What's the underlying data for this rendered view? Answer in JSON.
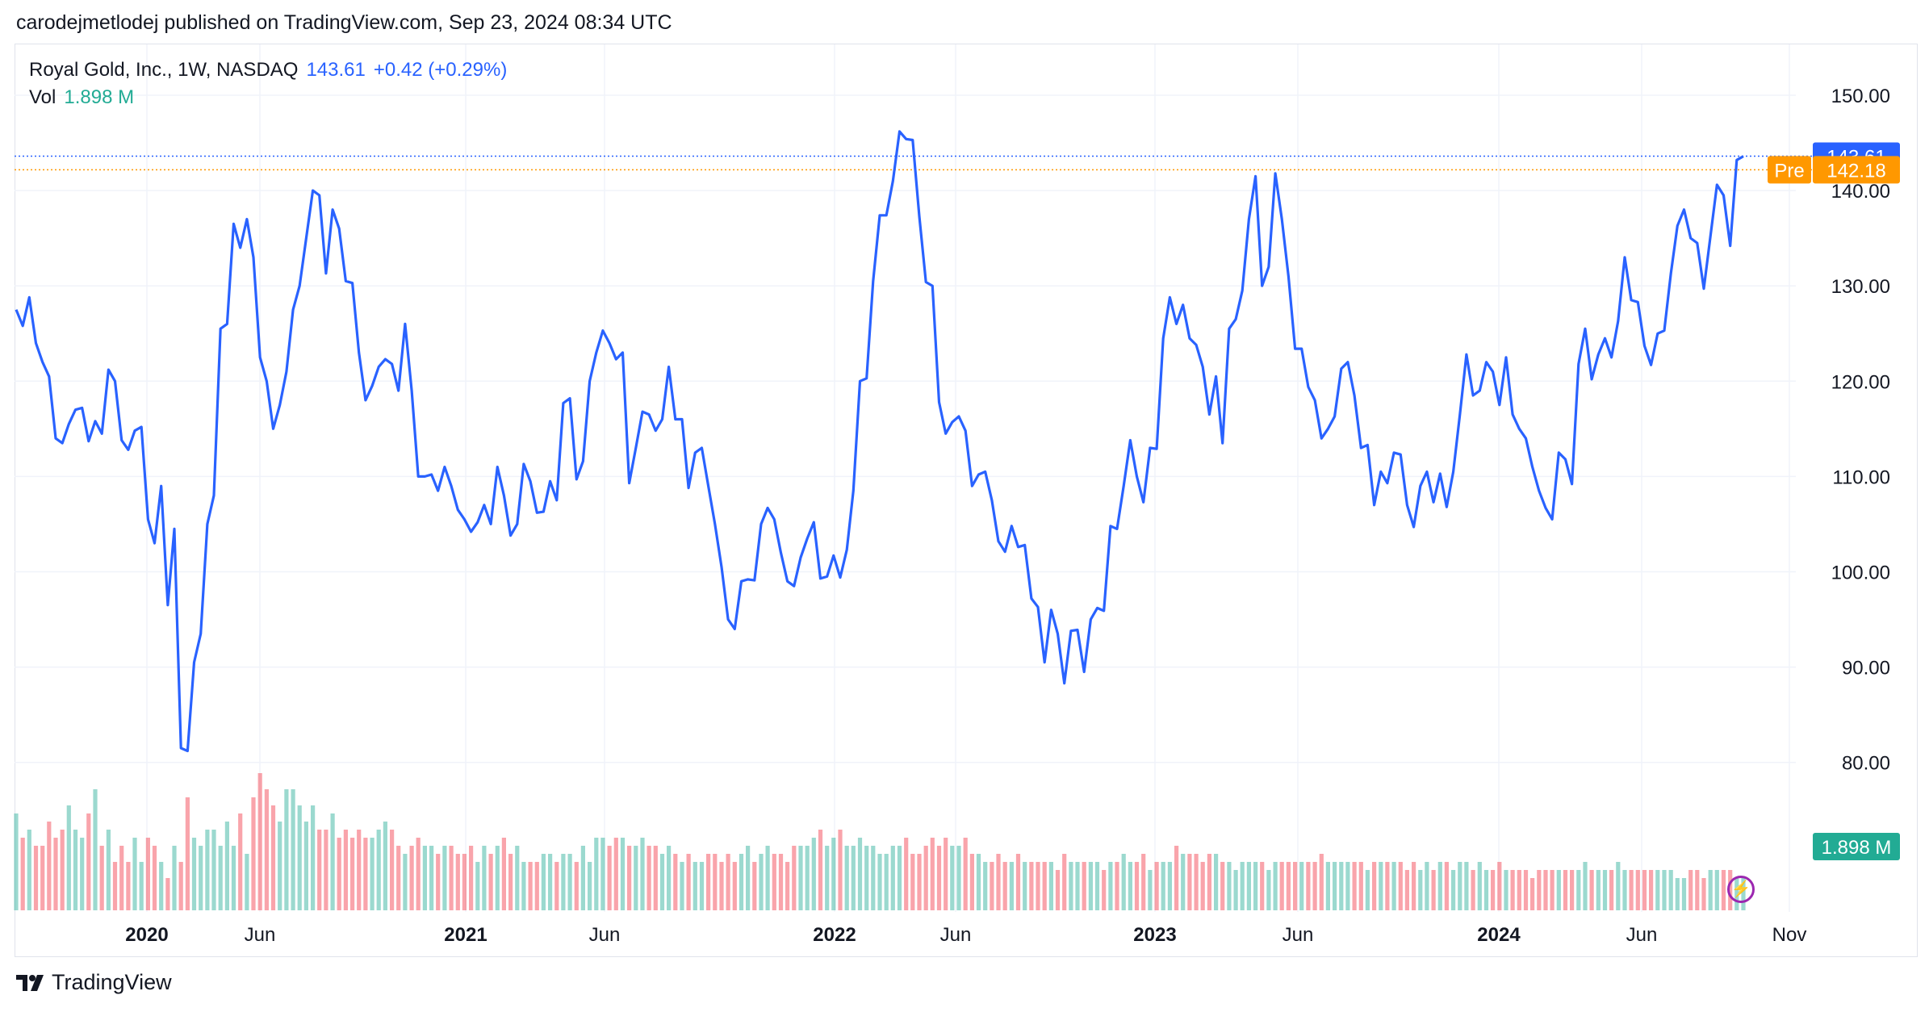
{
  "header": {
    "published_line": "carodejmetlodej published on TradingView.com, Sep 23, 2024 08:34 UTC"
  },
  "legend": {
    "symbol": "Royal Gold, Inc., 1W, NASDAQ",
    "price": "143.61",
    "change": "+0.42 (+0.29%)",
    "vol_label": "Vol",
    "vol_value": "1.898 M"
  },
  "footer": {
    "brand": "TradingView"
  },
  "icons": {
    "logo": "tradingview-logo-icon",
    "bolt": "lightning-icon"
  },
  "colors": {
    "price_line": "#2962ff",
    "pre_market": "#ff9800",
    "volume_up": "#22ab94",
    "volume_down": "#f23645",
    "volume_badge": "#22ab94"
  },
  "chart_data": {
    "type": "line",
    "title": "Royal Gold, Inc., 1W, NASDAQ",
    "x_tick_labels": [
      "2020",
      "Jun",
      "2021",
      "Jun",
      "2022",
      "Jun",
      "2023",
      "Jun",
      "2024",
      "Jun",
      "Nov"
    ],
    "y_tick_labels": [
      "150.00",
      "140.00",
      "130.00",
      "120.00",
      "110.00",
      "100.00",
      "90.00",
      "80.00"
    ],
    "ylim": [
      74,
      154
    ],
    "grid": true,
    "badges": {
      "last_price": "143.61",
      "pre_label": "Pre",
      "pre_price": "142.18",
      "volume": "1.898 M"
    },
    "series": [
      {
        "weekly_close": [
          127.5,
          125.8,
          128.8,
          124,
          122,
          120.5,
          114,
          113.5,
          115.5,
          117,
          117.2,
          113.7,
          115.8,
          114.5,
          121.2,
          120,
          113.8,
          112.8,
          114.8,
          115.2,
          105.5,
          103,
          109,
          96.5,
          104.5,
          81.5,
          81.2,
          90.5,
          93.5,
          105,
          108,
          125.5,
          126,
          136.5,
          134,
          137,
          133,
          122.5,
          120,
          115,
          117.5,
          121,
          127.5,
          130,
          135,
          140,
          139.5,
          131.3,
          138,
          136,
          130.5,
          130.3,
          123,
          118,
          119.5,
          121.5,
          122.3,
          121.8,
          119,
          126,
          119,
          110,
          110,
          110.2,
          108.5,
          111,
          109,
          106.5,
          105.5,
          104.2,
          105.2,
          107,
          105,
          111,
          108,
          103.8,
          105,
          111.3,
          109.5,
          106.2,
          106.3,
          109.5,
          107.5,
          117.7,
          118.2,
          109.7,
          111.6,
          120,
          123,
          125.3,
          124,
          122.3,
          123,
          109.3,
          113,
          116.8,
          116.5,
          114.8,
          116,
          121.5,
          116,
          116,
          108.8,
          112.5,
          113,
          109,
          105,
          100.5,
          95,
          94,
          99,
          99.2,
          99.1,
          105,
          106.7,
          105.5,
          102,
          99,
          98.5,
          101.5,
          103.5,
          105.2,
          99.3,
          99.5,
          101.7,
          99.4,
          102.3,
          108.5,
          120,
          120.3,
          130.5,
          137.4,
          137.4,
          141,
          146.2,
          145.4,
          145.3,
          137.3,
          130.4,
          130,
          117.8,
          114.5,
          115.7,
          116.3,
          114.8,
          109,
          110.2,
          110.5,
          107.5,
          103.2,
          102.1,
          104.8,
          102.6,
          102.8,
          97.2,
          96.3,
          90.5,
          96,
          93.5,
          88.3,
          93.8,
          93.9,
          89.5,
          95,
          96.2,
          95.9,
          104.8,
          104.5,
          109,
          113.8,
          110,
          107.3,
          113,
          112.9,
          124.5,
          128.8,
          126,
          128,
          124.5,
          123.8,
          121.5,
          116.5,
          120.5,
          113.5,
          125.5,
          126.5,
          129.5,
          137,
          141.5,
          130,
          132,
          141.8,
          137,
          131,
          123.4,
          123.4,
          119.4,
          118,
          114,
          115,
          116.3,
          121.3,
          122,
          118.5,
          113,
          113.3,
          107,
          110.5,
          109.3,
          112.5,
          112.3,
          107,
          104.7,
          109,
          110.5,
          107.3,
          110.3,
          106.8,
          110.5,
          116.5,
          122.8,
          118.5,
          119,
          122,
          121,
          117.5,
          122.5,
          116.5,
          115,
          114,
          111,
          108.5,
          106.7,
          105.5,
          112.5,
          111.8,
          109.2,
          121.8,
          125.5,
          120.2,
          122.8,
          124.5,
          122.5,
          126.3,
          133,
          128.5,
          128.3,
          123.7,
          121.7,
          125,
          125.3,
          131.3,
          136.3,
          138,
          135,
          134.5,
          129.7,
          135.2,
          140.6,
          139.5,
          134.2,
          143.2,
          143.6
        ]
      }
    ],
    "volume_bars": [
      {
        "v": [
          1.2,
          0.9,
          1.0,
          0.8,
          0.8,
          1.1,
          0.9,
          1.0,
          1.3,
          1.0,
          0.9,
          1.2,
          1.5,
          0.8,
          1.0,
          0.6,
          0.8,
          0.6,
          0.9,
          0.6,
          0.9,
          0.8,
          0.6,
          0.4,
          0.8,
          0.6,
          1.4,
          0.9,
          0.8,
          1.0,
          1.0,
          0.8,
          1.1,
          0.8,
          1.2,
          0.7,
          1.4,
          1.7,
          1.5,
          1.3,
          1.1,
          1.5,
          1.5,
          1.3,
          1.1,
          1.3,
          1.0,
          1.0,
          1.2,
          0.9,
          1.0,
          0.9,
          1.0,
          0.9,
          0.9,
          1.0,
          1.1,
          1.0,
          0.8,
          0.7,
          0.8,
          0.9,
          0.8,
          0.8,
          0.7,
          0.8,
          0.8,
          0.7,
          0.7,
          0.8,
          0.6,
          0.8,
          0.7,
          0.8,
          0.9,
          0.7,
          0.8,
          0.6,
          0.6,
          0.6,
          0.7,
          0.7,
          0.6,
          0.7,
          0.7,
          0.6,
          0.8,
          0.6,
          0.9,
          0.9,
          0.8,
          0.9,
          0.9,
          0.8,
          0.8,
          0.9,
          0.8,
          0.8,
          0.7,
          0.8,
          0.7,
          0.6,
          0.7,
          0.6,
          0.6,
          0.7,
          0.7,
          0.6,
          0.7,
          0.6,
          0.7,
          0.8,
          0.6,
          0.7,
          0.8,
          0.7,
          0.7,
          0.6,
          0.8,
          0.8,
          0.8,
          0.9,
          1.0,
          0.8,
          0.9,
          1.0,
          0.8,
          0.8,
          0.9,
          0.8,
          0.8,
          0.7,
          0.7,
          0.8,
          0.8,
          0.9,
          0.7,
          0.7,
          0.8,
          0.9,
          0.8,
          0.9,
          0.8,
          0.8,
          0.9,
          0.7,
          0.7,
          0.6,
          0.6,
          0.7,
          0.6,
          0.6,
          0.7,
          0.6,
          0.6,
          0.6,
          0.6,
          0.6,
          0.5,
          0.7,
          0.6,
          0.6,
          0.6,
          0.6,
          0.6,
          0.5,
          0.6,
          0.6,
          0.7,
          0.6,
          0.6,
          0.7,
          0.5,
          0.6,
          0.6,
          0.6,
          0.8,
          0.7,
          0.7,
          0.7,
          0.6,
          0.7,
          0.7,
          0.6,
          0.6,
          0.5,
          0.6,
          0.6,
          0.6,
          0.6,
          0.5,
          0.6,
          0.6,
          0.6,
          0.6,
          0.6,
          0.6,
          0.6,
          0.7,
          0.6,
          0.6,
          0.6,
          0.6,
          0.6,
          0.6,
          0.5,
          0.6,
          0.6,
          0.6,
          0.6,
          0.6,
          0.5,
          0.6,
          0.5,
          0.6,
          0.5,
          0.6,
          0.6,
          0.5,
          0.6,
          0.6,
          0.5,
          0.6,
          0.5,
          0.5,
          0.6,
          0.5,
          0.5,
          0.5,
          0.5,
          0.4,
          0.5,
          0.5,
          0.5,
          0.5,
          0.5,
          0.5,
          0.5,
          0.6,
          0.5,
          0.5,
          0.5,
          0.5,
          0.6,
          0.5,
          0.5,
          0.5,
          0.5,
          0.5,
          0.5,
          0.5,
          0.5,
          0.4,
          0.4,
          0.5,
          0.5,
          0.4,
          0.5,
          0.5,
          0.5,
          0.5,
          0.4,
          0.4,
          0.5,
          0.5,
          0.4,
          0.5,
          0.4,
          0.5,
          0.4,
          0.4,
          0.5,
          0.4,
          0.4,
          0.5,
          0.4,
          0.4,
          0.4,
          0.3,
          0.3,
          0.4,
          0.4
        ]
      }
    ]
  }
}
